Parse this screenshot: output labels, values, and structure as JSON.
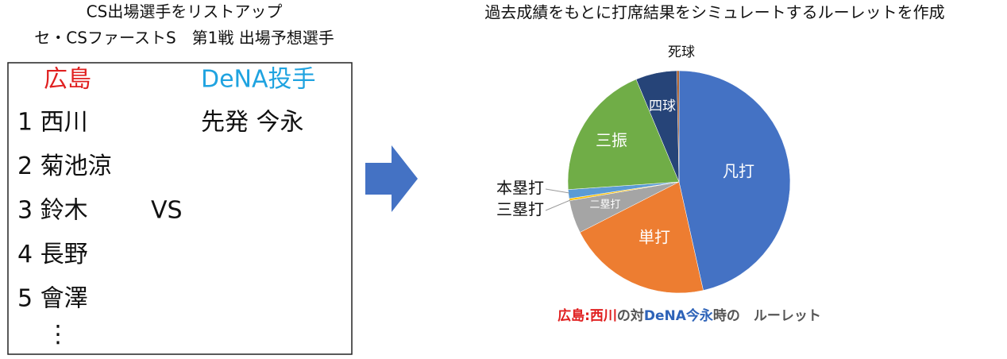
{
  "left": {
    "title_lines": [
      "CS出場選手をリストアップ",
      "セ・CSファーストS　第1戦 出場予想選手"
    ],
    "team_home": "広島",
    "team_away": "DeNA投手",
    "lineup": [
      "1 西川",
      "2 菊池涼",
      "3 鈴木",
      "4 長野",
      "5 會澤"
    ],
    "continuation": "⋮",
    "vs": "VS",
    "starter": "先発 今永"
  },
  "chart_data": {
    "type": "pie",
    "title": "過去成績をもとに打席結果をシミュレートするルーレットを作成",
    "categories": [
      "凡打",
      "単打",
      "二塁打",
      "三塁打",
      "本塁打",
      "三振",
      "四球",
      "死球"
    ],
    "values": [
      46.5,
      21,
      4.8,
      0.3,
      1.3,
      19.8,
      6,
      0.3
    ],
    "colors": [
      "#4472c4",
      "#ed7d31",
      "#a5a5a5",
      "#ffc000",
      "#5b9bd5",
      "#70ad47",
      "#264478",
      "#9e480e"
    ],
    "caption": [
      "広島:西川",
      "の対",
      "DeNA今永",
      "時の　ルーレット"
    ]
  }
}
